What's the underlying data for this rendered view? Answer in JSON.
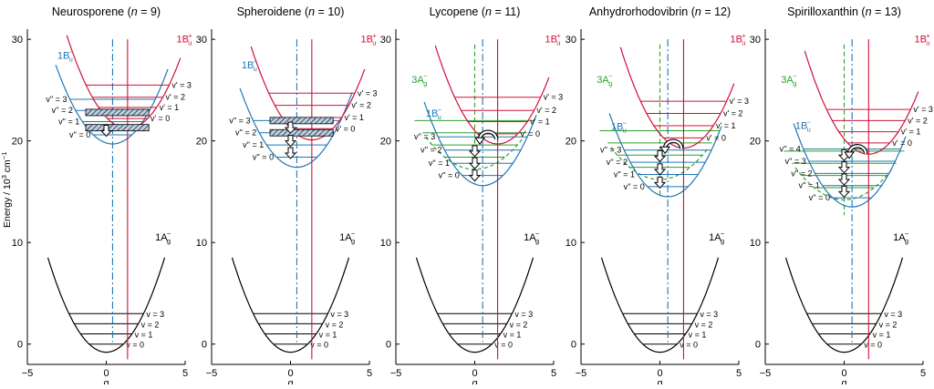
{
  "figure": {
    "y_axis_label": "Energy / 10",
    "y_axis_label_sup": "3",
    "y_axis_label_unit": " cm",
    "y_axis_label_unit_sup": "−1",
    "x_axis_label": "q",
    "y_ticks": [
      0,
      10,
      20,
      30
    ],
    "x_ticks": [
      -5,
      0,
      5
    ],
    "x_tick_labels": [
      "−5",
      "0",
      "5"
    ],
    "colors": {
      "ground": "#000000",
      "bu_minus": "#1f77b4",
      "bu_plus": "#d0103a",
      "ag_minus": "#2ca02c"
    },
    "state_labels": {
      "ground": "1A",
      "ground_sub": "g",
      "ground_sup": "−",
      "bu_minus": "1B",
      "bu_minus_sub": "u",
      "bu_minus_sup": "−",
      "bu_plus": "1B",
      "bu_plus_sub": "u",
      "bu_plus_sup": "+",
      "ag_minus": "3A",
      "ag_minus_sub": "g",
      "ag_minus_sup": "−"
    },
    "ground_level_labels": [
      "v = 0",
      "v = 1",
      "v = 2",
      "v = 3"
    ]
  },
  "chart_data": [
    {
      "type": "diagram",
      "title": "Neurosporene (n = 9)",
      "title_name": "Neurosporene",
      "n": 9,
      "xlim": [
        -5,
        5
      ],
      "ylim": [
        -2,
        31
      ],
      "ground": {
        "q0": 0,
        "min": -0.8,
        "k": 0.68,
        "levels": [
          0,
          1,
          2,
          3
        ]
      },
      "bu_minus": {
        "q0": 0.4,
        "min": 19.7,
        "k": 0.6,
        "levels": [
          20.6,
          21.9,
          23.0,
          24.1
        ],
        "level_labels": [
          "v'' = 0",
          "v'' = 1",
          "v'' = 2",
          "v'' = 3"
        ]
      },
      "bu_plus": {
        "q0": 1.35,
        "min": 21.2,
        "k": 0.62,
        "levels": [
          22.2,
          23.3,
          24.3,
          25.5
        ],
        "level_labels": [
          "v' = 0",
          "v' = 1",
          "v' = 2",
          "v' = 3"
        ]
      },
      "ag_minus": null,
      "hatched": [
        22.8,
        21.3
      ],
      "arrows": [
        21.0
      ],
      "loop": false
    },
    {
      "type": "diagram",
      "title": "Spheroidene (n = 10)",
      "title_name": "Spheroidene",
      "n": 10,
      "xlim": [
        -5,
        5
      ],
      "ylim": [
        -2,
        31
      ],
      "ground": {
        "q0": 0,
        "min": -0.8,
        "k": 0.68,
        "levels": [
          0,
          1,
          2,
          3
        ]
      },
      "bu_minus": {
        "q0": 0.4,
        "min": 17.4,
        "k": 0.6,
        "levels": [
          18.4,
          19.6,
          20.8,
          22.0
        ],
        "level_labels": [
          "v'' = 0",
          "v'' = 1",
          "v'' = 2",
          "v'' = 3"
        ]
      },
      "bu_plus": {
        "q0": 1.35,
        "min": 20.1,
        "k": 0.62,
        "levels": [
          21.2,
          22.3,
          23.5,
          24.7
        ],
        "level_labels": [
          "v' = 0",
          "v' = 1",
          "v' = 2",
          "v' = 3"
        ]
      },
      "ag_minus": null,
      "hatched": [
        22.0,
        20.8
      ],
      "arrows": [
        21.3,
        20.0,
        18.8
      ],
      "loop": false
    },
    {
      "type": "diagram",
      "title": "Lycopene (n = 11)",
      "title_name": "Lycopene",
      "n": 11,
      "xlim": [
        -5,
        5
      ],
      "ylim": [
        -2,
        31
      ],
      "ground": {
        "q0": 0,
        "min": -0.8,
        "k": 0.68,
        "levels": [
          0,
          1,
          2,
          3
        ]
      },
      "bu_minus": {
        "q0": 0.5,
        "min": 15.6,
        "k": 0.6,
        "levels": [
          16.6,
          17.8,
          19.1,
          20.4
        ],
        "level_labels": [
          "v'' = 0",
          "v'' = 1",
          "v'' = 2",
          "v'' = 3"
        ]
      },
      "bu_plus": {
        "q0": 1.45,
        "min": 19.7,
        "k": 0.62,
        "levels": [
          20.7,
          21.9,
          23.0,
          24.3
        ],
        "level_labels": [
          "v' = 0",
          "v' = 1",
          "v' = 2",
          "v' = 3"
        ]
      },
      "ag_minus": {
        "q0": 0.0,
        "min": 17.2,
        "k": 0.33,
        "levels": [
          18.4,
          19.6,
          20.8,
          22.0
        ]
      },
      "hatched": [],
      "arrows": [
        19.0,
        17.8,
        16.6
      ],
      "loop": true,
      "loop_y": 20.4
    },
    {
      "type": "diagram",
      "title": "Anhydrorhodovibrin (n = 12)",
      "title_name": "Anhydrorhodovibrin",
      "n": 12,
      "xlim": [
        -5,
        5
      ],
      "ylim": [
        -2,
        31
      ],
      "ground": {
        "q0": 0,
        "min": -0.8,
        "k": 0.68,
        "levels": [
          0,
          1,
          2,
          3
        ]
      },
      "bu_minus": {
        "q0": 0.5,
        "min": 14.5,
        "k": 0.6,
        "levels": [
          15.5,
          16.7,
          17.9,
          19.1
        ],
        "level_labels": [
          "v'' = 0",
          "v'' = 1",
          "v'' = 2",
          "v'' = 3"
        ]
      },
      "bu_plus": {
        "q0": 1.5,
        "min": 19.3,
        "k": 0.62,
        "levels": [
          20.3,
          21.5,
          22.7,
          23.9
        ],
        "level_labels": [
          "v' = 0",
          "v' = 1",
          "v' = 2",
          "v' = 3"
        ]
      },
      "ag_minus": {
        "q0": 0.0,
        "min": 16.2,
        "k": 0.33,
        "levels": [
          17.4,
          18.6,
          19.8,
          21.0
        ]
      },
      "hatched": [],
      "arrows": [
        18.5,
        17.2,
        15.9
      ],
      "loop": true,
      "loop_y": 19.5
    },
    {
      "type": "diagram",
      "title": "Spirilloxanthin (n = 13)",
      "title_name": "Spirilloxanthin",
      "n": 13,
      "xlim": [
        -5,
        5
      ],
      "ylim": [
        -2,
        31
      ],
      "ground": {
        "q0": 0,
        "min": -0.8,
        "k": 0.68,
        "levels": [
          0,
          1,
          2,
          3
        ]
      },
      "bu_minus": {
        "q0": 0.5,
        "min": 13.5,
        "k": 0.6,
        "levels": [
          14.4,
          15.6,
          16.8,
          18.0,
          19.2
        ],
        "level_labels": [
          "v'' = 0",
          "v'' = 1",
          "v'' = 2",
          "v'' = 3",
          "v'' = 4"
        ]
      },
      "bu_plus": {
        "q0": 1.55,
        "min": 18.7,
        "k": 0.62,
        "levels": [
          19.8,
          20.9,
          22.0,
          23.1
        ],
        "level_labels": [
          "v' = 0",
          "v' = 1",
          "v' = 2",
          "v' = 3"
        ]
      },
      "ag_minus": {
        "q0": 0.0,
        "min": 14.2,
        "k": 0.33,
        "levels": [
          15.4,
          16.6,
          17.8,
          19.0
        ]
      },
      "hatched": [],
      "arrows": [
        18.6,
        17.4,
        16.2,
        15.0
      ],
      "loop": true,
      "loop_y": 19.0
    }
  ]
}
